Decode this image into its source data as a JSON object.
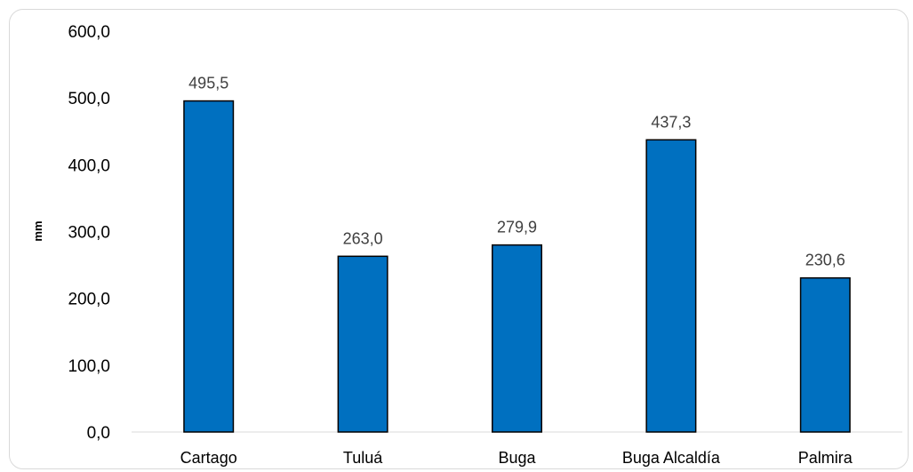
{
  "chart_data": {
    "type": "bar",
    "title": "",
    "xlabel": "",
    "ylabel": "mm",
    "categories": [
      "Cartago",
      "Tuluá",
      "Buga",
      "Buga Alcaldía",
      "Palmira"
    ],
    "values": [
      495.5,
      263.0,
      279.9,
      437.3,
      230.6
    ],
    "value_labels": [
      "495,5",
      "263,0",
      "279,9",
      "437,3",
      "230,6"
    ],
    "ylim": [
      0,
      600
    ],
    "yticks": [
      "0,0",
      "100,0",
      "200,0",
      "300,0",
      "400,0",
      "500,0",
      "600,0"
    ],
    "grid": false,
    "legend": "none",
    "bar_color": "#0070c0",
    "bar_edge_color": "#000000"
  }
}
